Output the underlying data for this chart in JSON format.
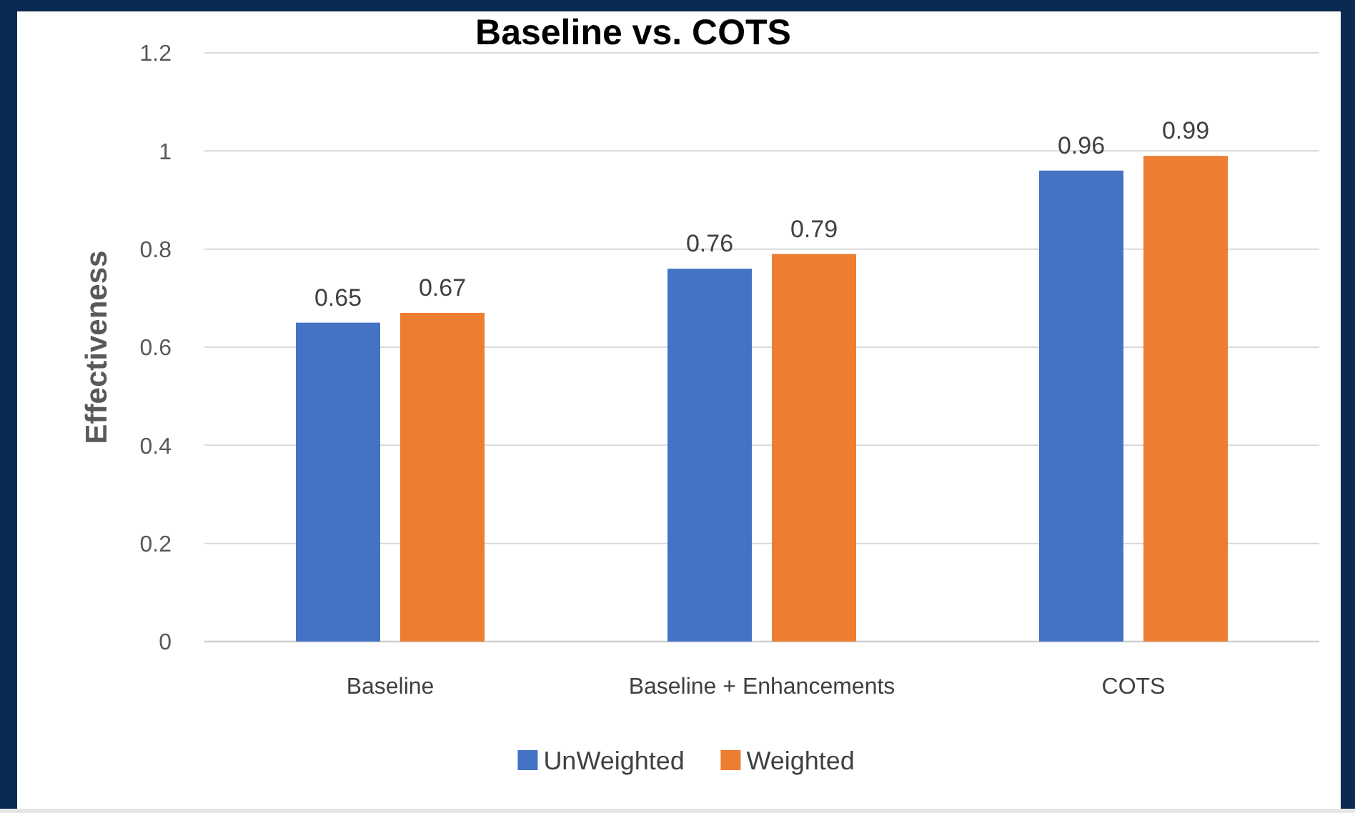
{
  "chart_data": {
    "type": "bar",
    "title": "Baseline vs. COTS",
    "ylabel": "Effectiveness",
    "categories": [
      "Baseline",
      "Baseline + Enhancements",
      "COTS"
    ],
    "series": [
      {
        "name": "UnWeighted",
        "color": "#4472c4",
        "values": [
          0.65,
          0.76,
          0.96
        ]
      },
      {
        "name": "Weighted",
        "color": "#ed7d31",
        "values": [
          0.67,
          0.79,
          0.99
        ]
      }
    ],
    "ylim": [
      0,
      1.2
    ],
    "yticks": [
      0,
      0.2,
      0.4,
      0.6,
      0.8,
      1,
      1.2
    ],
    "grid": "y",
    "legend": "bottom",
    "data_labels": true
  }
}
